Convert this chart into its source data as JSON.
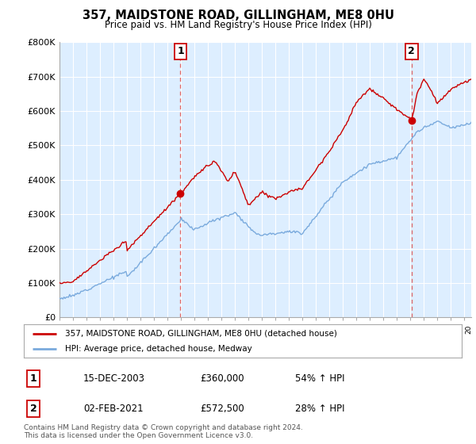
{
  "title": "357, MAIDSTONE ROAD, GILLINGHAM, ME8 0HU",
  "subtitle": "Price paid vs. HM Land Registry's House Price Index (HPI)",
  "background_color": "#ffffff",
  "chart_bg_color": "#ddeeff",
  "grid_color": "#ffffff",
  "sale1": {
    "date_x": 2003.96,
    "price": 360000,
    "label": "1",
    "date_str": "15-DEC-2003",
    "price_str": "£360,000",
    "hpi_str": "54% ↑ HPI"
  },
  "sale2": {
    "date_x": 2021.08,
    "price": 572500,
    "label": "2",
    "date_str": "02-FEB-2021",
    "price_str": "£572,500",
    "hpi_str": "28% ↑ HPI"
  },
  "line1_color": "#cc0000",
  "line2_color": "#7aaadd",
  "vline_color": "#dd6666",
  "marker_border_color": "#cc0000",
  "ylim": [
    0,
    800000
  ],
  "xlim_start": 1995,
  "xlim_end": 2025.5,
  "legend_line1": "357, MAIDSTONE ROAD, GILLINGHAM, ME8 0HU (detached house)",
  "legend_line2": "HPI: Average price, detached house, Medway",
  "footnote": "Contains HM Land Registry data © Crown copyright and database right 2024.\nThis data is licensed under the Open Government Licence v3.0.",
  "yticks": [
    0,
    100000,
    200000,
    300000,
    400000,
    500000,
    600000,
    700000,
    800000
  ]
}
